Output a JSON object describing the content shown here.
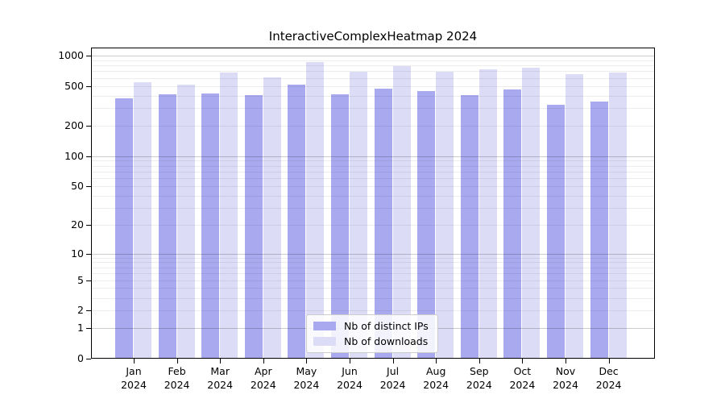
{
  "title": "InteractiveComplexHeatmap 2024",
  "chart_data": {
    "type": "bar",
    "title": "InteractiveComplexHeatmap 2024",
    "categories": [
      "Jan",
      "Feb",
      "Mar",
      "Apr",
      "May",
      "Jun",
      "Jul",
      "Aug",
      "Sep",
      "Oct",
      "Nov",
      "Dec"
    ],
    "year": "2024",
    "series": [
      {
        "name": "Nb of distinct IPs",
        "color": "#a9a9f0",
        "values": [
          370,
          405,
          415,
          400,
          505,
          405,
          460,
          435,
          395,
          455,
          318,
          345
        ]
      },
      {
        "name": "Nb of downloads",
        "color": "#dcdcf7",
        "values": [
          530,
          505,
          670,
          600,
          845,
          680,
          770,
          680,
          715,
          745,
          648,
          670
        ]
      }
    ],
    "xlabel": "",
    "ylabel": "",
    "yscale": "log1p",
    "ylim": [
      0,
      1200
    ],
    "yticks": [
      0,
      1,
      2,
      5,
      10,
      20,
      50,
      100,
      200,
      500,
      1000
    ],
    "minor_gridlines": [
      2,
      3,
      4,
      5,
      6,
      7,
      8,
      9,
      20,
      30,
      40,
      50,
      60,
      70,
      80,
      90,
      200,
      300,
      400,
      500,
      600,
      700,
      800,
      900
    ],
    "major_gridlines": [
      1,
      10,
      100,
      1000
    ],
    "grid": true,
    "legend_position": "bottom-center"
  }
}
